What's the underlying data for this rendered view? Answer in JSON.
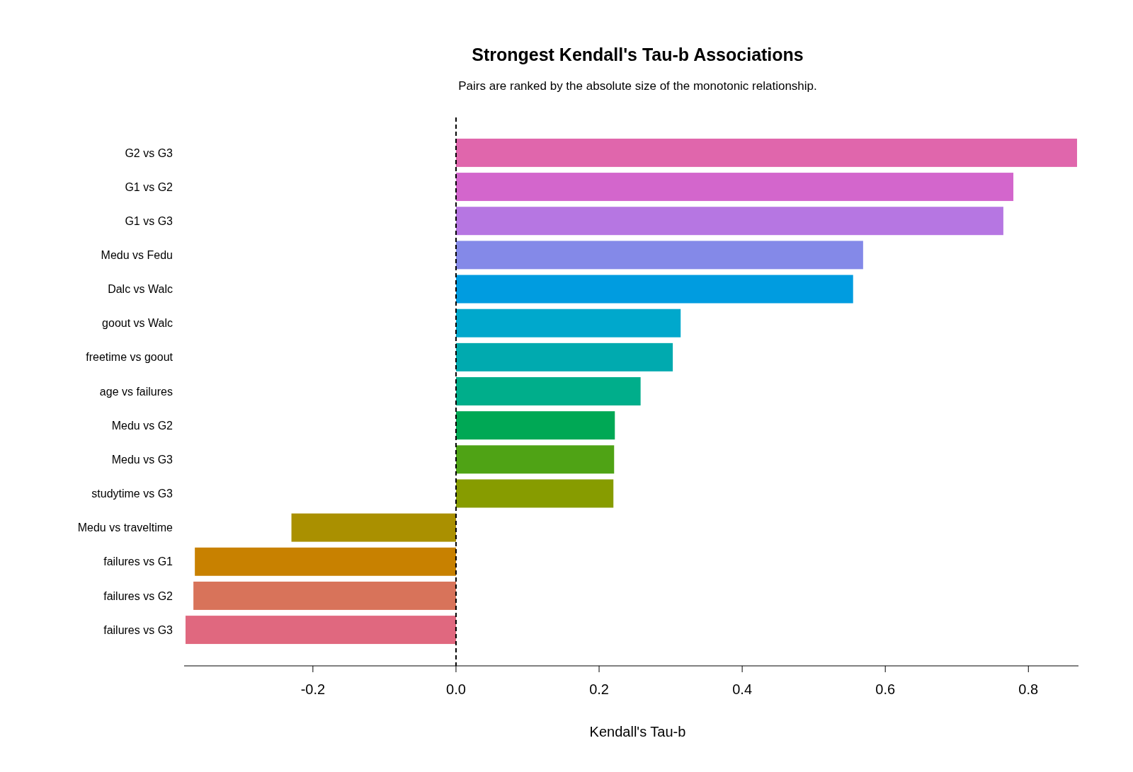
{
  "chart_data": {
    "type": "bar",
    "orientation": "horizontal",
    "title": "Strongest Kendall's Tau-b Associations",
    "subtitle": "Pairs are ranked by the absolute size of the monotonic relationship.",
    "xlabel": "Kendall's Tau-b",
    "categories": [
      "G2 vs G3",
      "G1 vs G2",
      "G1 vs G3",
      "Medu vs Fedu",
      "Dalc vs Walc",
      "goout vs Walc",
      "freetime vs goout",
      "age vs failures",
      "Medu vs G2",
      "Medu vs G3",
      "studytime vs G3",
      "Medu vs traveltime",
      "failures vs G1",
      "failures vs G2",
      "failures vs G3"
    ],
    "values": [
      0.868,
      0.779,
      0.765,
      0.569,
      0.555,
      0.314,
      0.303,
      0.258,
      0.222,
      0.221,
      0.22,
      -0.23,
      -0.365,
      -0.367,
      -0.378
    ],
    "colors": [
      "#e066ac",
      "#d366cc",
      "#b676e2",
      "#8489e8",
      "#009ce0",
      "#00a8cc",
      "#00aaaf",
      "#00ae8b",
      "#00a855",
      "#4fa315",
      "#879c00",
      "#aa9000",
      "#c88100",
      "#d8735a",
      "#e0687f"
    ],
    "xlim": [
      -0.38,
      0.87
    ],
    "xticks": [
      -0.2,
      {
        "value": 0,
        "label": "0.0"
      },
      0.2,
      0.4,
      0.6,
      0.8
    ],
    "ref_lines": [
      {
        "axis": "x",
        "value": 0,
        "color": "#000000",
        "line_style": "dashed"
      }
    ],
    "grid": false
  }
}
